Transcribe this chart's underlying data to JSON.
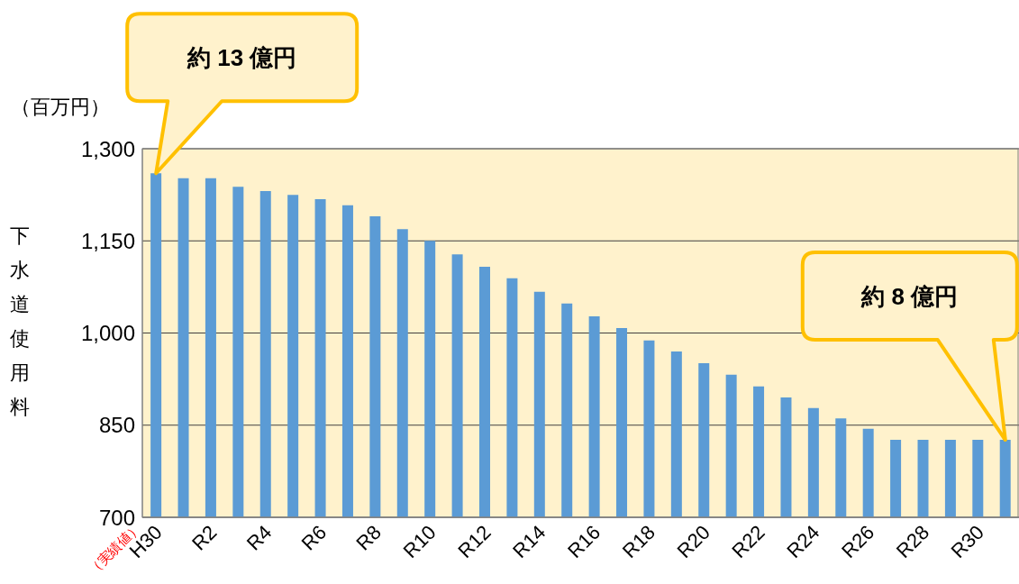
{
  "chart_data": {
    "type": "bar",
    "categories": [
      "H30",
      null,
      "R2",
      null,
      "R4",
      null,
      "R6",
      null,
      "R8",
      null,
      "R10",
      null,
      "R12",
      null,
      "R14",
      null,
      "R16",
      null,
      "R18",
      null,
      "R20",
      null,
      "R22",
      null,
      "R24",
      null,
      "R26",
      null,
      "R28",
      null,
      "R30",
      null
    ],
    "values": [
      1260,
      1252,
      1252,
      1238,
      1231,
      1225,
      1218,
      1208,
      1190,
      1169,
      1150,
      1128,
      1108,
      1089,
      1067,
      1048,
      1027,
      1008,
      988,
      970,
      951,
      932,
      913,
      895,
      878,
      861,
      844,
      826,
      826,
      826,
      826,
      826
    ],
    "color": "#5b9bd5",
    "ylabel": "下水道使用料",
    "ylim": [
      700,
      1300
    ],
    "yticks": [
      700,
      850,
      {
        "value": 1000,
        "label": "1,000"
      },
      {
        "value": 1150,
        "label": "1,150"
      },
      {
        "value": 1300,
        "label": "1,300"
      }
    ],
    "grid": "y",
    "annotations": [
      "（百万円）",
      "（実績値）",
      "約 13 億円",
      "約 8 億円"
    ]
  }
}
